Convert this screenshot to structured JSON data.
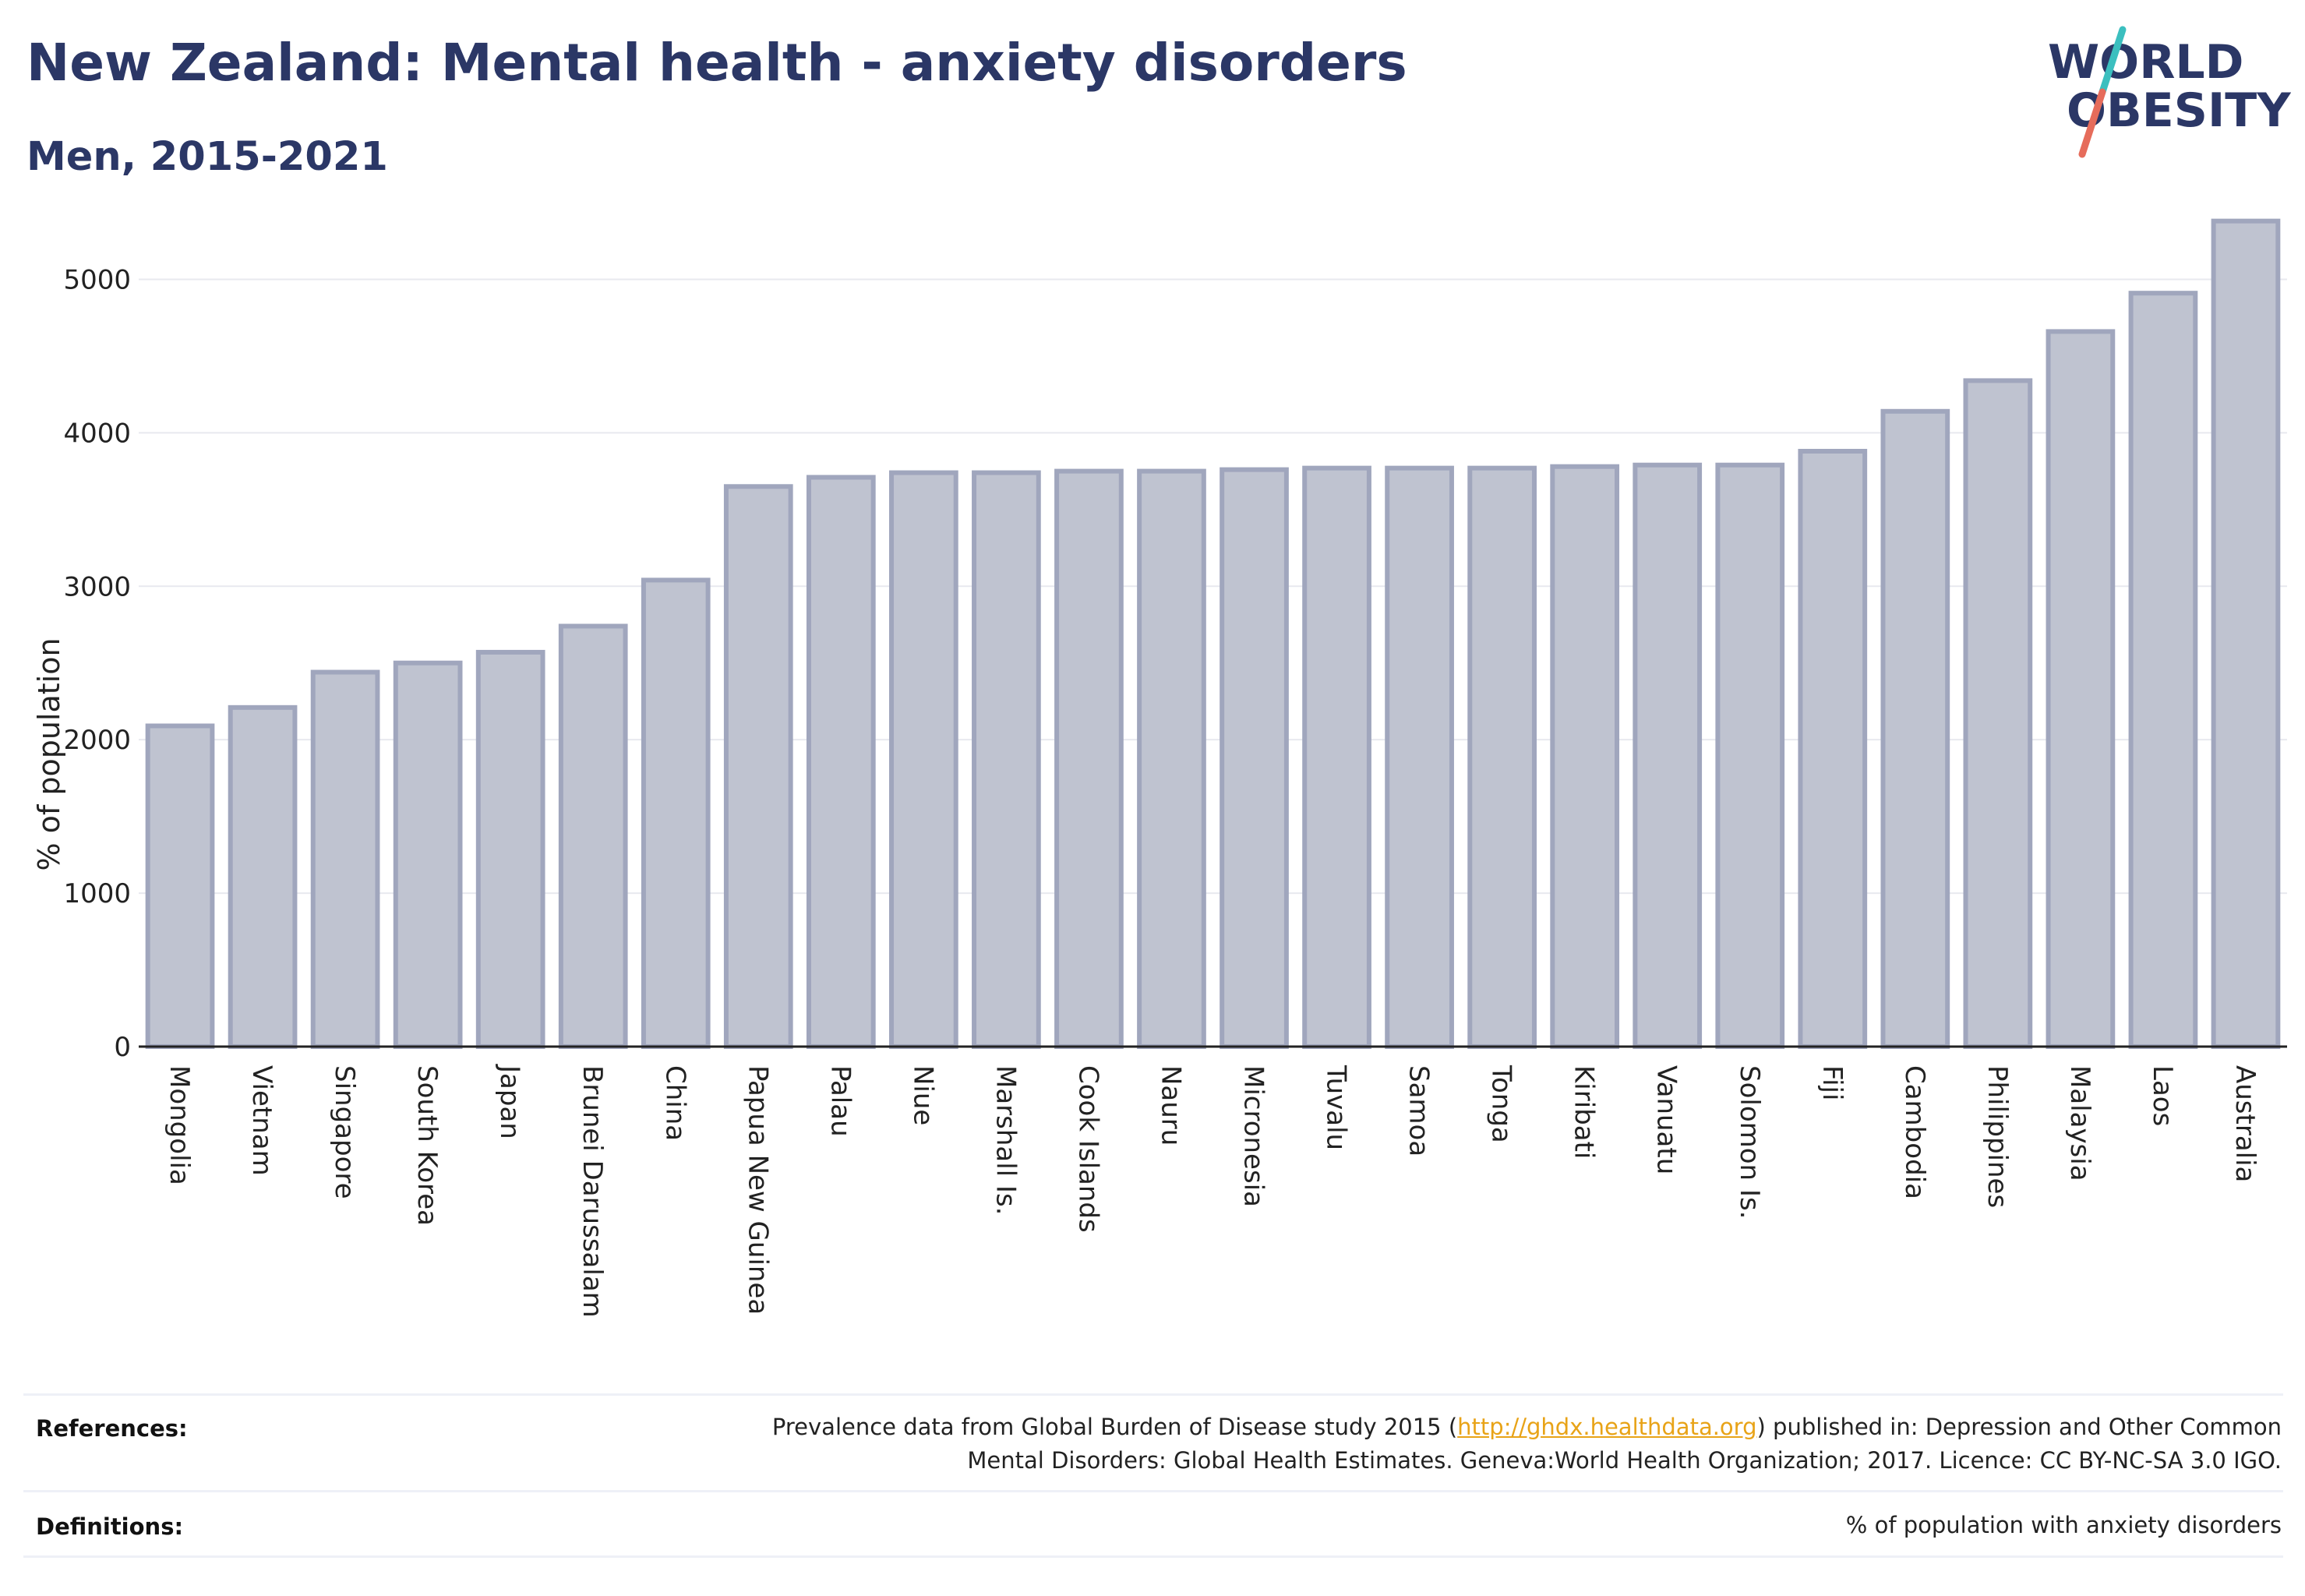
{
  "title": "New Zealand: Mental health - anxiety disorders",
  "subtitle": "Men, 2015-2021",
  "logo": {
    "line1": "WORLD",
    "line2": "OBESITY"
  },
  "colors": {
    "bar_fill": "#bfc3d0",
    "bar_stroke": "#a0a6bd",
    "title": "#2b3766",
    "link": "#e8a317",
    "logo_teal": "#3bbfbf",
    "logo_coral": "#e66c5b"
  },
  "chart_data": {
    "type": "bar",
    "ylabel": "% of population",
    "xlabel": "",
    "ylim": [
      0,
      5500
    ],
    "yticks": [
      0,
      1000,
      2000,
      3000,
      4000,
      5000
    ],
    "grid": true,
    "categories": [
      "Mongolia",
      "Vietnam",
      "Singapore",
      "South Korea",
      "Japan",
      "Brunei Darussalam",
      "China",
      "Papua New Guinea",
      "Palau",
      "Niue",
      "Marshall Is.",
      "Cook Islands",
      "Nauru",
      "Micronesia",
      "Tuvalu",
      "Samoa",
      "Tonga",
      "Kiribati",
      "Vanuatu",
      "Solomon Is.",
      "Fiji",
      "Cambodia",
      "Philippines",
      "Malaysia",
      "Laos",
      "Australia"
    ],
    "values": [
      2090,
      2210,
      2440,
      2500,
      2570,
      2740,
      3040,
      3650,
      3710,
      3740,
      3740,
      3750,
      3750,
      3760,
      3770,
      3770,
      3770,
      3780,
      3790,
      3790,
      3880,
      4140,
      4340,
      4660,
      4910,
      5380
    ]
  },
  "footer": {
    "references_label": "References:",
    "references_line1_pre": "Prevalence data from Global Burden of Disease study 2015 (",
    "references_link": "http://ghdx.healthdata.org",
    "references_line1_post": ") published in: Depression and Other Common",
    "references_line2": "Mental Disorders: Global Health Estimates. Geneva:World Health Organization; 2017. Licence: CC BY-NC-SA 3.0 IGO.",
    "definitions_label": "Definitions:",
    "definitions_text": "% of population with anxiety disorders"
  }
}
